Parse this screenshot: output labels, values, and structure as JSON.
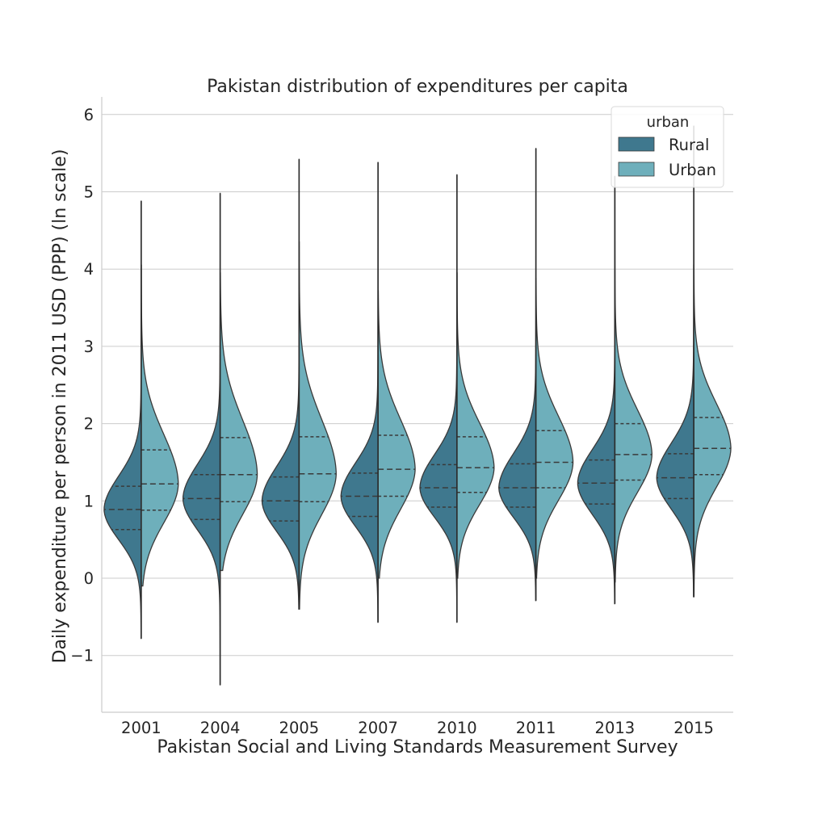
{
  "chart_data": {
    "type": "violin",
    "split": true,
    "title": "Pakistan distribution of expenditures per capita",
    "xlabel": "Pakistan Social and Living Standards Measurement Survey",
    "ylabel": "Daily expenditure per person in 2011 USD (PPP) (ln scale)",
    "categories": [
      "2001",
      "2004",
      "2005",
      "2007",
      "2010",
      "2011",
      "2013",
      "2015"
    ],
    "ylim": [
      -1.75,
      6.2
    ],
    "yticks": [
      -1,
      0,
      1,
      2,
      3,
      4,
      5,
      6
    ],
    "ytick_labels": [
      "−1",
      "0",
      "1",
      "2",
      "3",
      "4",
      "5",
      "6"
    ],
    "grid": true,
    "legend": {
      "title": "urban",
      "position": "top-right"
    },
    "colors": {
      "Rural": "#3f788e",
      "Urban": "#6eafbb"
    },
    "series": [
      {
        "name": "Rural",
        "min": [
          -0.78,
          -1.38,
          -0.4,
          -0.57,
          -0.57,
          -0.29,
          -0.33,
          -0.24
        ],
        "max": [
          4.88,
          4.98,
          5.42,
          5.38,
          5.22,
          5.56,
          5.1,
          4.05
        ],
        "q1": [
          0.63,
          0.76,
          0.74,
          0.8,
          0.92,
          0.92,
          0.96,
          1.03
        ],
        "median": [
          0.89,
          1.03,
          1.0,
          1.06,
          1.17,
          1.17,
          1.23,
          1.3
        ],
        "q3": [
          1.19,
          1.34,
          1.31,
          1.36,
          1.47,
          1.48,
          1.53,
          1.61
        ]
      },
      {
        "name": "Urban",
        "min": [
          -0.1,
          0.1,
          -0.4,
          0.0,
          0.0,
          0.0,
          -0.05,
          -0.24
        ],
        "max": [
          4.05,
          3.95,
          4.35,
          3.72,
          3.95,
          3.88,
          5.2,
          5.85
        ],
        "q1": [
          0.88,
          0.99,
          0.99,
          1.06,
          1.11,
          1.17,
          1.27,
          1.34
        ],
        "median": [
          1.22,
          1.34,
          1.35,
          1.41,
          1.43,
          1.5,
          1.6,
          1.68
        ],
        "q3": [
          1.66,
          1.82,
          1.83,
          1.85,
          1.83,
          1.91,
          2.0,
          2.08
        ]
      }
    ]
  }
}
